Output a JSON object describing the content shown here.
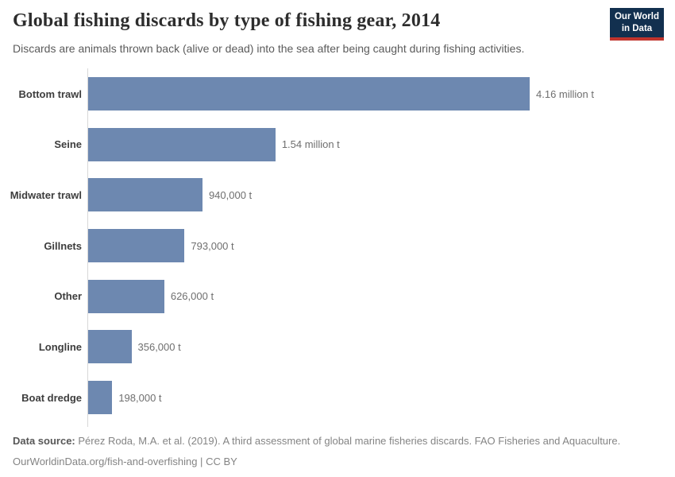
{
  "header": {
    "title": "Global fishing discards by type of fishing gear, 2014",
    "subtitle": "Discards are animals thrown back (alive or dead) into the sea after being caught during fishing activities.",
    "logo": {
      "line1": "Our World",
      "line2": "in Data",
      "bg_color": "#12304f",
      "accent_color": "#c0342d"
    }
  },
  "chart_data": {
    "type": "bar",
    "orientation": "horizontal",
    "title": "Global fishing discards by type of fishing gear, 2014",
    "subtitle": "Discards are animals thrown back (alive or dead) into the sea after being caught during fishing activities.",
    "categories": [
      "Bottom trawl",
      "Seine",
      "Midwater trawl",
      "Gillnets",
      "Other",
      "Longline",
      "Boat dredge"
    ],
    "values": [
      4160000,
      1540000,
      940000,
      793000,
      626000,
      356000,
      198000
    ],
    "value_labels": [
      "4.16 million t",
      "1.54 million t",
      "940,000 t",
      "793,000 t",
      "626,000 t",
      "356,000 t",
      "198,000 t"
    ],
    "unit": "t",
    "xlim": [
      0,
      4160000
    ],
    "grid": false,
    "legend": false,
    "bar_color": "#6d88b0",
    "axis_color": "#d8d8d8"
  },
  "footer": {
    "source_label": "Data source:",
    "source_text": "Pérez Roda, M.A. et al. (2019). A third assessment of global marine fisheries discards. FAO Fisheries and Aquaculture.",
    "link_text": "OurWorldinData.org/fish-and-overfishing",
    "separator": "|",
    "license": "CC BY"
  }
}
